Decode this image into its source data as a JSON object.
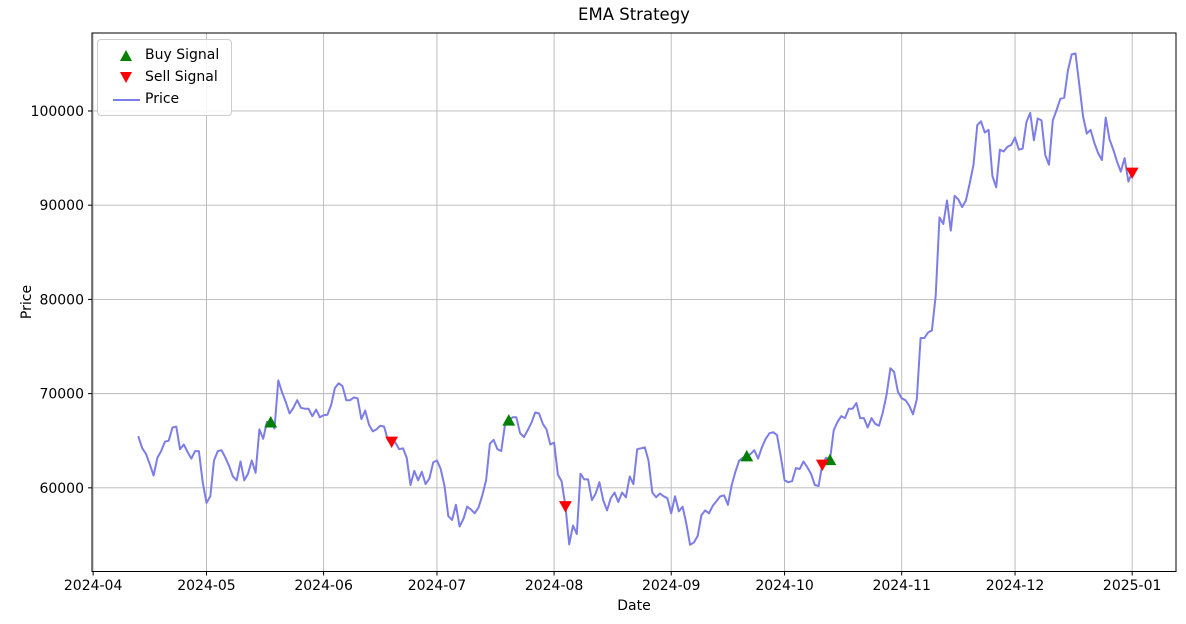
{
  "chart_data": {
    "type": "line",
    "title": "EMA Strategy",
    "xlabel": "Date",
    "ylabel": "Price",
    "grid": true,
    "legend_position": "upper left",
    "x_epoch": "2024-04-01",
    "xlim_days": [
      -0.3,
      286.6
    ],
    "ylim": [
      51120,
      108276
    ],
    "x_ticks": [
      {
        "label": "2024-04",
        "day": 0
      },
      {
        "label": "2024-05",
        "day": 30
      },
      {
        "label": "2024-06",
        "day": 61
      },
      {
        "label": "2024-07",
        "day": 91
      },
      {
        "label": "2024-08",
        "day": 122
      },
      {
        "label": "2024-09",
        "day": 153
      },
      {
        "label": "2024-10",
        "day": 183
      },
      {
        "label": "2024-11",
        "day": 214
      },
      {
        "label": "2024-12",
        "day": 244
      },
      {
        "label": "2025-01",
        "day": 275
      }
    ],
    "y_ticks": [
      60000,
      70000,
      80000,
      90000,
      100000
    ],
    "price_series": {
      "name": "Price",
      "color": "#7d7de8",
      "start_date": "2024-04-13",
      "frequency": "daily",
      "values": [
        65400,
        64200,
        63600,
        62500,
        61300,
        63200,
        63900,
        64900,
        65000,
        66400,
        66500,
        64100,
        64600,
        63800,
        63100,
        63900,
        63900,
        60600,
        58400,
        59100,
        62900,
        63900,
        64000,
        63200,
        62300,
        61200,
        60800,
        62800,
        60800,
        61500,
        62900,
        61600,
        66200,
        65200,
        67000,
        66900,
        66300,
        71400,
        70150,
        69100,
        67900,
        68500,
        69300,
        68500,
        68400,
        68400,
        67600,
        68300,
        67500,
        67700,
        67750,
        68800,
        70600,
        71100,
        70800,
        69300,
        69300,
        69600,
        69500,
        67300,
        68200,
        66700,
        66000,
        66200,
        66600,
        66500,
        65100,
        64950,
        64800,
        64100,
        64200,
        63200,
        60300,
        61800,
        60800,
        61700,
        60400,
        61000,
        62700,
        62900,
        62000,
        60200,
        57000,
        56600,
        58200,
        55900,
        56700,
        58000,
        57700,
        57300,
        57900,
        59200,
        60800,
        64700,
        65100,
        64100,
        63900,
        66700,
        67100,
        67500,
        67500,
        65800,
        65400,
        66100,
        66900,
        68000,
        67900,
        66800,
        66200,
        64600,
        64800,
        61400,
        60700,
        58100,
        54000,
        56000,
        55100,
        61500,
        60900,
        60900,
        58700,
        59400,
        60600,
        58700,
        57600,
        58900,
        59500,
        58500,
        59500,
        59000,
        61200,
        60400,
        64100,
        64200,
        64300,
        62900,
        59500,
        59000,
        59400,
        59100,
        58900,
        57300,
        59100,
        57500,
        58000,
        56200,
        53950,
        54200,
        54900,
        57100,
        57600,
        57300,
        58100,
        58600,
        59100,
        59200,
        58200,
        60300,
        61700,
        62900,
        63200,
        63300,
        63600,
        64000,
        63100,
        64300,
        65200,
        65800,
        65900,
        65600,
        63300,
        60800,
        60600,
        60700,
        62100,
        62000,
        62800,
        62200,
        61500,
        60300,
        60200,
        62500,
        63200,
        62900,
        66100,
        67000,
        67600,
        67400,
        68400,
        68400,
        69000,
        67400,
        67400,
        66400,
        67400,
        66800,
        66600,
        68000,
        69900,
        72700,
        72300,
        70200,
        69500,
        69300,
        68700,
        67800,
        69400,
        75900,
        75900,
        76500,
        76700,
        80400,
        88700,
        88000,
        90500,
        87300,
        91000,
        90600,
        89800,
        90500,
        92300,
        94300,
        98500,
        98900,
        97700,
        98000,
        93100,
        91900,
        95900,
        95700,
        96200,
        96400,
        97200,
        95900,
        96000,
        98800,
        99800,
        96900,
        99200,
        99000,
        95300,
        94300,
        99000,
        100100,
        101300,
        101400,
        104300,
        106000,
        106100,
        102800,
        99400,
        97600,
        98000,
        96600,
        95500,
        94800,
        99300,
        97000,
        95900,
        94600,
        93560,
        95000,
        92500,
        93500
      ]
    },
    "signals": {
      "buy": {
        "label": "Buy Signal",
        "marker": "triangle-up",
        "color": "#008000",
        "points": [
          [
            "2024-05-18",
            66900
          ],
          [
            "2024-07-20",
            67100
          ],
          [
            "2024-09-21",
            63300
          ],
          [
            "2024-10-13",
            62900
          ]
        ]
      },
      "sell": {
        "label": "Sell Signal",
        "marker": "triangle-down",
        "color": "#ff0000",
        "points": [
          [
            "2024-06-19",
            64950
          ],
          [
            "2024-08-04",
            58100
          ],
          [
            "2024-10-11",
            62500
          ],
          [
            "2025-01-01",
            93500
          ]
        ]
      }
    },
    "style": {
      "grid_color": "#b8b8b8",
      "spine_color": "#000000",
      "background": "#ffffff",
      "line_width": 2
    }
  }
}
